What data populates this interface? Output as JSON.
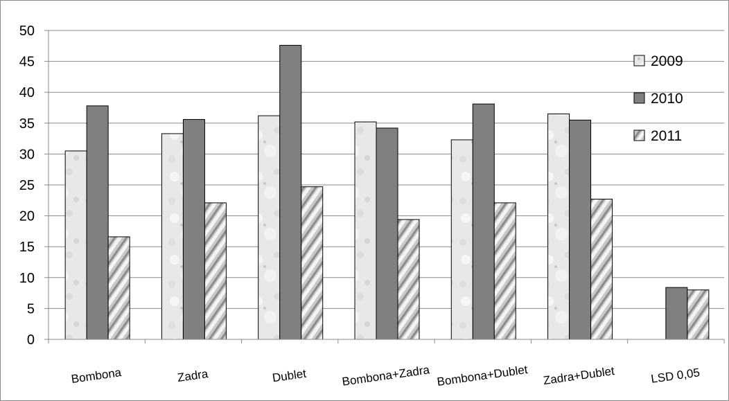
{
  "chart_data": {
    "type": "bar",
    "title": "",
    "xlabel": "",
    "ylabel": "",
    "ylim": [
      0,
      50
    ],
    "yticks": [
      0,
      5,
      10,
      15,
      20,
      25,
      30,
      35,
      40,
      45,
      50
    ],
    "grid": true,
    "legend_position": "top-right",
    "categories": [
      "Bombona",
      "Zadra",
      "Dublet",
      "Bombona+Zadra",
      "Bombona+Dublet",
      "Zadra+Dublet",
      "LSD 0,05"
    ],
    "series": [
      {
        "name": "2009",
        "values": [
          30.5,
          33.3,
          36.2,
          35.2,
          32.3,
          36.5,
          null
        ],
        "fill": "#e4e4e4"
      },
      {
        "name": "2010",
        "values": [
          37.8,
          35.6,
          47.6,
          34.2,
          38.1,
          35.5,
          8.4
        ],
        "fill": "#808080"
      },
      {
        "name": "2011",
        "values": [
          16.6,
          22.1,
          24.7,
          19.4,
          22.1,
          22.7,
          8.0
        ],
        "fill": "#b4b4b4"
      }
    ]
  }
}
